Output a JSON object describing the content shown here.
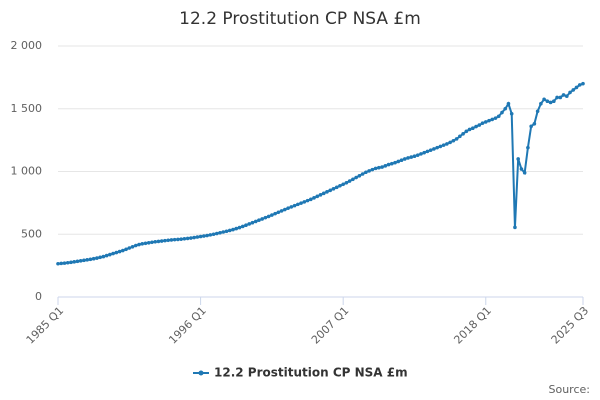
{
  "chart_data": {
    "type": "line",
    "title": "12.2 Prostitution CP NSA £m",
    "source": "Source:",
    "categories": [
      "1985 Q1",
      null,
      null,
      null,
      null,
      null,
      null,
      null,
      null,
      null,
      null,
      null,
      null,
      null,
      null,
      null,
      null,
      null,
      null,
      null,
      null,
      null,
      null,
      null,
      null,
      null,
      null,
      null,
      null,
      null,
      null,
      null,
      null,
      null,
      null,
      null,
      null,
      null,
      null,
      null,
      null,
      null,
      null,
      null,
      "1996 Q1",
      null,
      null,
      null,
      null,
      null,
      null,
      null,
      null,
      null,
      null,
      null,
      null,
      null,
      null,
      null,
      null,
      null,
      null,
      null,
      null,
      null,
      null,
      null,
      null,
      null,
      null,
      null,
      null,
      null,
      null,
      null,
      null,
      null,
      null,
      null,
      null,
      null,
      null,
      null,
      null,
      null,
      null,
      null,
      "2007 Q1",
      null,
      null,
      null,
      null,
      null,
      null,
      null,
      null,
      null,
      null,
      null,
      null,
      null,
      null,
      null,
      null,
      null,
      null,
      null,
      null,
      null,
      null,
      null,
      null,
      null,
      null,
      null,
      null,
      null,
      null,
      null,
      null,
      null,
      null,
      null,
      null,
      null,
      null,
      null,
      null,
      null,
      null,
      null,
      "2018 Q1",
      null,
      null,
      null,
      null,
      null,
      null,
      null,
      null,
      null,
      null,
      null,
      null,
      null,
      null,
      null,
      null,
      null,
      null,
      null,
      null,
      null,
      null,
      null,
      null,
      null,
      null,
      null,
      null,
      null,
      "2025 Q3"
    ],
    "series": [
      {
        "name": "12.2 Prostitution CP NSA £m",
        "color": "#1f78b4",
        "values": [
          265,
          268,
          270,
          273,
          276,
          280,
          284,
          288,
          292,
          296,
          300,
          305,
          310,
          316,
          322,
          330,
          338,
          346,
          354,
          362,
          370,
          380,
          390,
          400,
          410,
          418,
          424,
          428,
          432,
          436,
          440,
          443,
          446,
          449,
          452,
          455,
          457,
          459,
          461,
          464,
          467,
          470,
          474,
          478,
          482,
          486,
          490,
          495,
          500,
          506,
          512,
          518,
          524,
          530,
          537,
          545,
          553,
          562,
          572,
          582,
          592,
          602,
          612,
          622,
          632,
          642,
          653,
          664,
          675,
          686,
          697,
          708,
          718,
          728,
          738,
          748,
          758,
          768,
          778,
          790,
          802,
          814,
          826,
          838,
          850,
          862,
          874,
          886,
          898,
          910,
          924,
          938,
          952,
          966,
          980,
          994,
          1005,
          1015,
          1025,
          1030,
          1035,
          1045,
          1055,
          1062,
          1070,
          1080,
          1090,
          1100,
          1108,
          1115,
          1122,
          1130,
          1140,
          1150,
          1160,
          1170,
          1180,
          1190,
          1200,
          1210,
          1220,
          1232,
          1245,
          1260,
          1280,
          1300,
          1320,
          1335,
          1345,
          1358,
          1370,
          1385,
          1395,
          1405,
          1415,
          1425,
          1440,
          1470,
          1500,
          1540,
          1460,
          555,
          1100,
          1020,
          990,
          1190,
          1360,
          1380,
          1480,
          1540,
          1575,
          1560,
          1550,
          1560,
          1590,
          1590,
          1610,
          1600,
          1630,
          1650,
          1670,
          1690,
          1700
        ]
      }
    ],
    "ylim": [
      0,
      2000
    ],
    "yticks": [
      0,
      500,
      {
        "value": 1000,
        "label": "1 000"
      },
      {
        "value": 1500,
        "label": "1 500"
      },
      {
        "value": 2000,
        "label": "2 000"
      }
    ],
    "grid": true,
    "legend": "bottom"
  }
}
